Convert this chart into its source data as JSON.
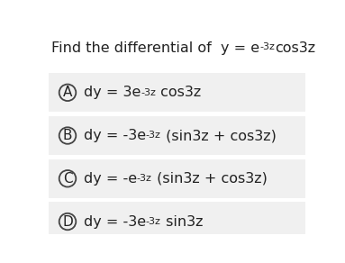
{
  "bg_color": "#ffffff",
  "option_bg": "#f0f0f0",
  "text_color": "#222222",
  "title_prefix": "Find the differential of  y = e",
  "title_sup": "-3z",
  "title_suffix": "cos3z",
  "options": [
    {
      "letter": "A",
      "base": "dy = 3e",
      "sup": "-3z",
      "rest": " cos3z"
    },
    {
      "letter": "B",
      "base": "dy = -3e",
      "sup": "-3z",
      "rest": " (sin3z + cos3z)"
    },
    {
      "letter": "C",
      "base": "dy = -e",
      "sup": "-3z",
      "rest": " (sin3z + cos3z)"
    },
    {
      "letter": "D",
      "base": "dy = -3e",
      "sup": "-3z",
      "rest": " sin3z"
    }
  ],
  "font_size": 11.5,
  "sup_font_size": 8.0,
  "letter_font_size": 11.0
}
